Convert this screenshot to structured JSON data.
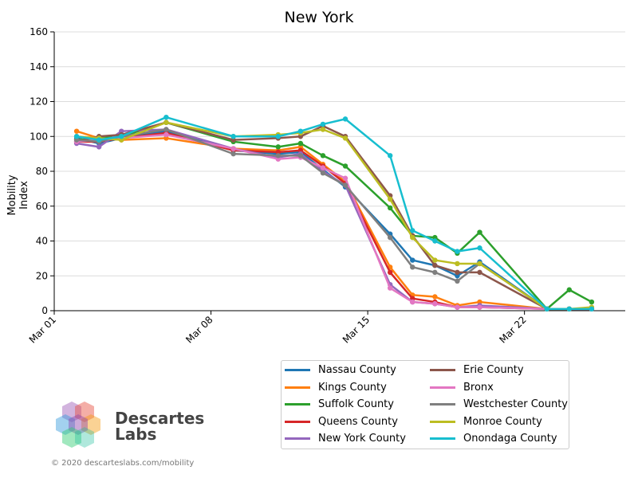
{
  "chart_data": {
    "type": "line",
    "title": "New York",
    "xlabel": "",
    "ylabel": "Mobility Index",
    "ylim": [
      0,
      160
    ],
    "yticks": [
      0,
      20,
      40,
      60,
      80,
      100,
      120,
      140,
      160
    ],
    "xlim": [
      0,
      25.5
    ],
    "xticks": [
      {
        "label": "Mar 01",
        "x": 0
      },
      {
        "label": "Mar 08",
        "x": 7
      },
      {
        "label": "Mar 15",
        "x": 14
      },
      {
        "label": "Mar 22",
        "x": 21
      }
    ],
    "grid": "horizontal",
    "legend_position": "bottom-center",
    "series": [
      {
        "name": "Nassau County",
        "color": "#1f77b4",
        "points": [
          [
            1,
            99
          ],
          [
            2,
            96
          ],
          [
            3,
            99
          ],
          [
            5,
            103
          ],
          [
            8,
            92
          ],
          [
            10,
            90
          ],
          [
            11,
            91
          ],
          [
            12,
            81
          ],
          [
            13,
            71
          ],
          [
            15,
            44
          ],
          [
            16,
            29
          ],
          [
            17,
            26
          ],
          [
            18,
            20
          ],
          [
            19,
            28
          ],
          [
            22,
            1
          ],
          [
            23,
            1
          ],
          [
            24,
            1
          ]
        ]
      },
      {
        "name": "Kings County",
        "color": "#ff7f0e",
        "points": [
          [
            1,
            103
          ],
          [
            2,
            99
          ],
          [
            3,
            98
          ],
          [
            5,
            99
          ],
          [
            8,
            93
          ],
          [
            10,
            92
          ],
          [
            11,
            94
          ],
          [
            12,
            84
          ],
          [
            13,
            74
          ],
          [
            15,
            25
          ],
          [
            16,
            9
          ],
          [
            17,
            8
          ],
          [
            18,
            3
          ],
          [
            19,
            5
          ],
          [
            22,
            1
          ],
          [
            23,
            1
          ],
          [
            24,
            1
          ]
        ]
      },
      {
        "name": "Suffolk County",
        "color": "#2ca02c",
        "points": [
          [
            1,
            98
          ],
          [
            2,
            99
          ],
          [
            3,
            100
          ],
          [
            5,
            108
          ],
          [
            8,
            97
          ],
          [
            10,
            94
          ],
          [
            11,
            96
          ],
          [
            12,
            89
          ],
          [
            13,
            83
          ],
          [
            15,
            59
          ],
          [
            16,
            43
          ],
          [
            17,
            42
          ],
          [
            18,
            33
          ],
          [
            19,
            45
          ],
          [
            22,
            1
          ],
          [
            23,
            12
          ],
          [
            24,
            5
          ]
        ]
      },
      {
        "name": "Queens County",
        "color": "#d62728",
        "points": [
          [
            1,
            97
          ],
          [
            2,
            97
          ],
          [
            3,
            99
          ],
          [
            5,
            102
          ],
          [
            8,
            92
          ],
          [
            10,
            91
          ],
          [
            11,
            92
          ],
          [
            12,
            83
          ],
          [
            13,
            73
          ],
          [
            15,
            22
          ],
          [
            16,
            7
          ],
          [
            17,
            5
          ],
          [
            18,
            2
          ],
          [
            19,
            2
          ],
          [
            22,
            1
          ],
          [
            23,
            1
          ],
          [
            24,
            1
          ]
        ]
      },
      {
        "name": "New York County",
        "color": "#9467bd",
        "points": [
          [
            1,
            96
          ],
          [
            2,
            94
          ],
          [
            3,
            103
          ],
          [
            5,
            104
          ],
          [
            8,
            93
          ],
          [
            10,
            88
          ],
          [
            11,
            90
          ],
          [
            12,
            80
          ],
          [
            13,
            72
          ],
          [
            15,
            15
          ],
          [
            16,
            5
          ],
          [
            17,
            4
          ],
          [
            18,
            2
          ],
          [
            19,
            3
          ],
          [
            22,
            1
          ],
          [
            23,
            1
          ],
          [
            24,
            1
          ]
        ]
      },
      {
        "name": "Erie County",
        "color": "#8c564b",
        "points": [
          [
            1,
            97
          ],
          [
            2,
            100
          ],
          [
            3,
            101
          ],
          [
            5,
            108
          ],
          [
            8,
            98
          ],
          [
            10,
            99
          ],
          [
            11,
            100
          ],
          [
            12,
            106
          ],
          [
            13,
            100
          ],
          [
            15,
            66
          ],
          [
            16,
            43
          ],
          [
            17,
            26
          ],
          [
            18,
            22
          ],
          [
            19,
            22
          ],
          [
            22,
            1
          ],
          [
            23,
            1
          ],
          [
            24,
            1
          ]
        ]
      },
      {
        "name": "Bronx",
        "color": "#e377c2",
        "points": [
          [
            1,
            97
          ],
          [
            2,
            98
          ],
          [
            3,
            99
          ],
          [
            5,
            101
          ],
          [
            8,
            93
          ],
          [
            10,
            87
          ],
          [
            11,
            88
          ],
          [
            12,
            82
          ],
          [
            13,
            76
          ],
          [
            15,
            13
          ],
          [
            16,
            5
          ],
          [
            17,
            4
          ],
          [
            18,
            2
          ],
          [
            19,
            2
          ],
          [
            22,
            1
          ],
          [
            23,
            1
          ],
          [
            24,
            1
          ]
        ]
      },
      {
        "name": "Westchester County",
        "color": "#7f7f7f",
        "points": [
          [
            1,
            98
          ],
          [
            2,
            97
          ],
          [
            3,
            100
          ],
          [
            5,
            104
          ],
          [
            8,
            90
          ],
          [
            10,
            89
          ],
          [
            11,
            89
          ],
          [
            12,
            79
          ],
          [
            13,
            72
          ],
          [
            15,
            42
          ],
          [
            16,
            25
          ],
          [
            17,
            22
          ],
          [
            18,
            17
          ],
          [
            19,
            27
          ],
          [
            22,
            1
          ],
          [
            23,
            1
          ],
          [
            24,
            1
          ]
        ]
      },
      {
        "name": "Monroe County",
        "color": "#bcbd22",
        "points": [
          [
            1,
            100
          ],
          [
            2,
            99
          ],
          [
            3,
            98
          ],
          [
            5,
            108
          ],
          [
            8,
            100
          ],
          [
            10,
            101
          ],
          [
            11,
            102
          ],
          [
            12,
            104
          ],
          [
            13,
            99
          ],
          [
            15,
            64
          ],
          [
            16,
            42
          ],
          [
            17,
            29
          ],
          [
            18,
            27
          ],
          [
            19,
            27
          ],
          [
            22,
            1
          ],
          [
            23,
            1
          ],
          [
            24,
            2
          ]
        ]
      },
      {
        "name": "Onondaga County",
        "color": "#17becf",
        "points": [
          [
            1,
            100
          ],
          [
            2,
            98
          ],
          [
            3,
            100
          ],
          [
            5,
            111
          ],
          [
            8,
            100
          ],
          [
            10,
            100
          ],
          [
            11,
            103
          ],
          [
            12,
            107
          ],
          [
            13,
            110
          ],
          [
            15,
            89
          ],
          [
            16,
            46
          ],
          [
            17,
            40
          ],
          [
            18,
            34
          ],
          [
            19,
            36
          ],
          [
            22,
            1
          ],
          [
            23,
            1
          ],
          [
            24,
            1
          ]
        ]
      }
    ]
  },
  "logo": {
    "name": "Descartes Labs",
    "line1": "Descartes",
    "line2": "Labs"
  },
  "copyright": "© 2020 descarteslabs.com/mobility"
}
